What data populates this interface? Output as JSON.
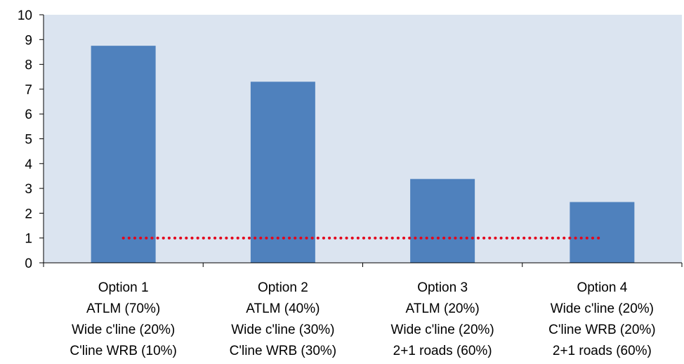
{
  "chart_data": {
    "type": "bar",
    "categories": [
      [
        "Option 1",
        "ATLM (70%)",
        "Wide c'line (20%)",
        "C'line WRB (10%)"
      ],
      [
        "Option 2",
        "ATLM (40%)",
        "Wide c'line (30%)",
        "C'line WRB (30%)"
      ],
      [
        "Option 3",
        "ATLM (20%)",
        "Wide c'line (20%)",
        "2+1 roads (60%)"
      ],
      [
        "Option 4",
        "Wide c'line (20%)",
        "C'line WRB (20%)",
        "2+1 roads (60%)"
      ]
    ],
    "values": [
      8.75,
      7.3,
      3.38,
      2.45
    ],
    "reference_line": {
      "value": 1,
      "style": "dotted",
      "color": "#e3061b"
    },
    "ylim": [
      0,
      10
    ],
    "yticks": [
      "0",
      "1",
      "2",
      "3",
      "4",
      "5",
      "6",
      "7",
      "8",
      "9",
      "10"
    ],
    "title": "",
    "xlabel": "",
    "ylabel": "",
    "grid": false,
    "legend": "none",
    "colors": {
      "bar": "#4f81bd",
      "plot_background": "#dbe4f0",
      "axis": "#000000"
    }
  }
}
